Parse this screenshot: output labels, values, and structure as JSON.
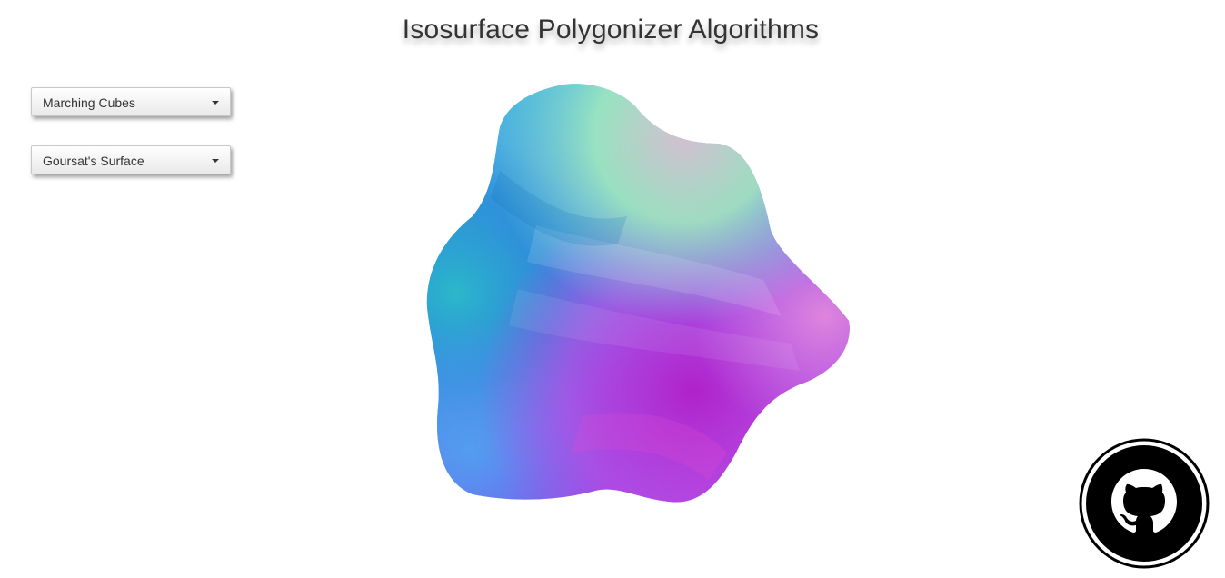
{
  "page": {
    "title": "Isosurface Polygonizer Algorithms"
  },
  "controls": {
    "algorithm": {
      "selected": "Marching Cubes"
    },
    "surface": {
      "selected": "Goursat's Surface"
    }
  },
  "viewport": {
    "content": "rendered-isosurface-mesh"
  },
  "links": {
    "github": {
      "icon": "github-icon"
    }
  },
  "colors": {
    "title": "#333333",
    "mesh_cyan": "#33d6c8",
    "mesh_blue": "#5a6af0",
    "mesh_magenta": "#c231d9",
    "mesh_green": "#a8f0b0"
  }
}
